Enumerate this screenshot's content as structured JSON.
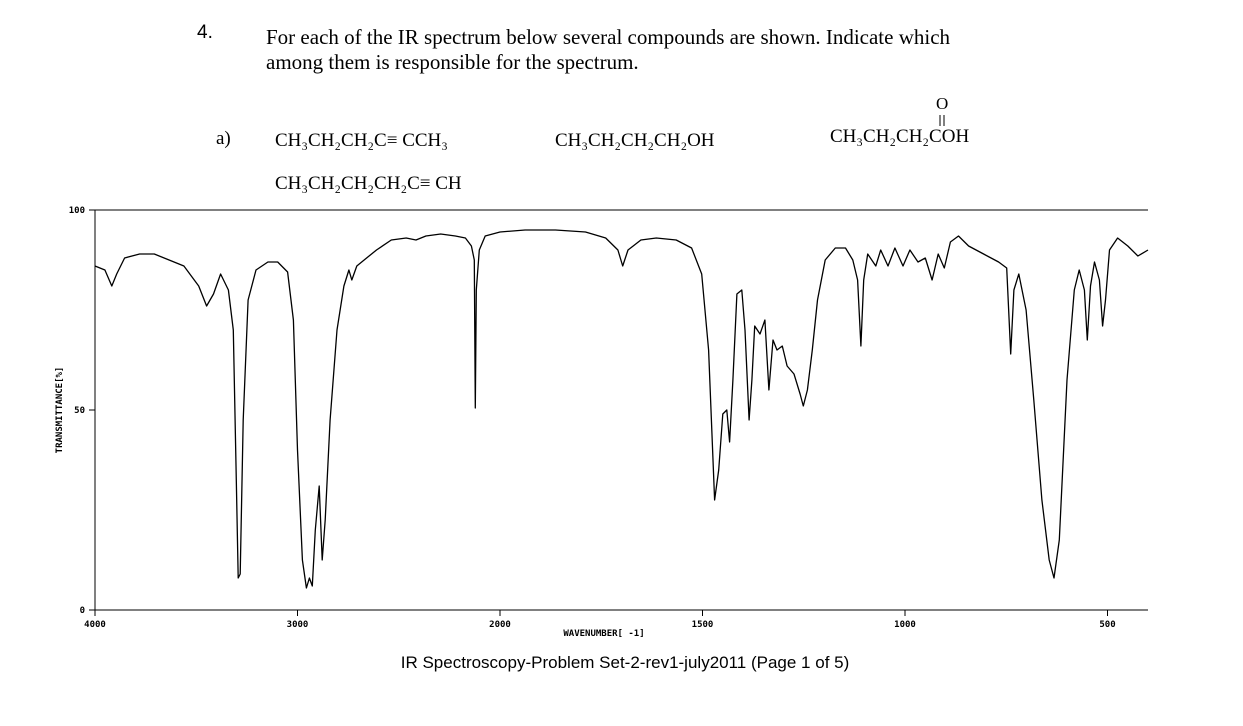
{
  "question": {
    "number": "4.",
    "lines": [
      "For each of the IR  spectrum below several compounds are shown. Indicate which",
      "among them is responsible for the spectrum."
    ]
  },
  "part": {
    "label": "a)",
    "compounds": [
      "CH₃CH₂CH₂C≡ CCH₃",
      "CH₃CH₂CH₂CH₂OH",
      "CH₃CH₂CH₂COH",
      "CH₃CH₂CH₂CH₂C≡ CH"
    ],
    "carbonyl_oxygen": "O"
  },
  "chart_data": {
    "type": "line",
    "color": "#000000",
    "xlabel": "WAVENUMBER[ -1]",
    "ylabel": "TRANSMITTANCE[%]",
    "xlim": [
      4000,
      400
    ],
    "ylim": [
      0,
      100
    ],
    "xscale": {
      "type": "piecewise",
      "break": 2000,
      "ratio": 2
    },
    "xticks": [
      4000,
      3000,
      2000,
      1500,
      1000,
      500
    ],
    "yticks": [
      0,
      50,
      100
    ],
    "x": [
      4000,
      3951,
      3917,
      3893,
      3854,
      3780,
      3707,
      3634,
      3561,
      3488,
      3449,
      3415,
      3380,
      3341,
      3317,
      3302,
      3293,
      3283,
      3268,
      3244,
      3205,
      3146,
      3098,
      3049,
      3020,
      3000,
      2976,
      2956,
      2941,
      2927,
      2912,
      2893,
      2878,
      2863,
      2839,
      2805,
      2771,
      2746,
      2732,
      2707,
      2659,
      2610,
      2537,
      2463,
      2415,
      2366,
      2293,
      2220,
      2171,
      2141,
      2127,
      2122,
      2117,
      2102,
      2073,
      2000,
      1938,
      1863,
      1789,
      1739,
      1709,
      1697,
      1684,
      1652,
      1614,
      1565,
      1527,
      1502,
      1485,
      1475,
      1470,
      1460,
      1450,
      1440,
      1433,
      1425,
      1415,
      1403,
      1395,
      1385,
      1378,
      1371,
      1358,
      1346,
      1336,
      1326,
      1316,
      1303,
      1291,
      1274,
      1259,
      1251,
      1241,
      1229,
      1216,
      1197,
      1172,
      1147,
      1129,
      1117,
      1109,
      1102,
      1092,
      1072,
      1060,
      1042,
      1025,
      1005,
      988,
      968,
      950,
      933,
      918,
      903,
      888,
      868,
      843,
      806,
      769,
      749,
      739,
      731,
      719,
      701,
      682,
      662,
      644,
      632,
      619,
      600,
      582,
      570,
      557,
      550,
      542,
      532,
      520,
      512,
      505,
      495,
      475,
      450,
      425,
      400
    ],
    "values": [
      86,
      85,
      81,
      84,
      88,
      89,
      89,
      87.5,
      86,
      81,
      76,
      79,
      84,
      80,
      70,
      32.5,
      8,
      9,
      47.5,
      77.5,
      85,
      87,
      87,
      84.5,
      72.5,
      40,
      12.5,
      5.5,
      8,
      6,
      20,
      31,
      12.5,
      22.5,
      47.5,
      70,
      81,
      85,
      82.5,
      86,
      88,
      90,
      92.5,
      93,
      92.5,
      93.5,
      94,
      93.5,
      93,
      91,
      87.5,
      50.5,
      80,
      90,
      93.5,
      94.5,
      95,
      95,
      94.5,
      93,
      90,
      86,
      90,
      92.5,
      93,
      92.5,
      90.5,
      84,
      65,
      40,
      27.5,
      35,
      49,
      50,
      42,
      57.5,
      79,
      80,
      70,
      47.5,
      57.5,
      71,
      69,
      72.5,
      55,
      67.5,
      65,
      66,
      61,
      59,
      54,
      51,
      55,
      65,
      77.5,
      87.5,
      90.5,
      90.5,
      87.5,
      82.5,
      66,
      82.5,
      89,
      86,
      90,
      86,
      90.5,
      86,
      90,
      87,
      88,
      82.5,
      89,
      85.5,
      92,
      93.5,
      91,
      89,
      87,
      85.5,
      64,
      80,
      84,
      75,
      52.5,
      27.5,
      12.5,
      8,
      17.5,
      57.5,
      80,
      85,
      80,
      67.5,
      81,
      87,
      82.5,
      71,
      77.5,
      90,
      93,
      91,
      88.5,
      90
    ]
  },
  "footer": "IR Spectroscopy-Problem Set-2-rev1-july2011 (Page 1 of 5)"
}
